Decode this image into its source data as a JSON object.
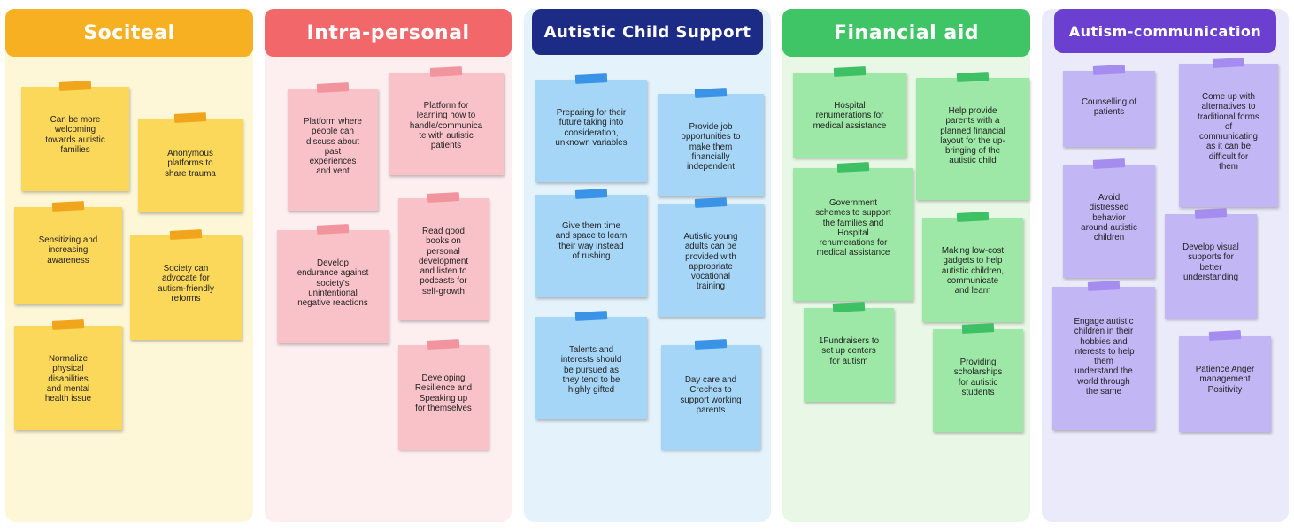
{
  "colors": {
    "societal": {
      "bg": "#fdf7d8",
      "header": "#f6b022",
      "note": "#fbd75a",
      "tape": "#f1a51c"
    },
    "intrapersonal": {
      "bg": "#fdeef0",
      "header": "#f2676a",
      "note": "#f9c2c9",
      "tape": "#f2949e"
    },
    "childsupport": {
      "bg": "#e3f2fb",
      "header": "#1b2b86",
      "note": "#a6d6f7",
      "tape": "#3a93e6"
    },
    "financial": {
      "bg": "#e9f8e6",
      "header": "#3fc466",
      "note": "#9de8a6",
      "tape": "#3ec064"
    },
    "communication": {
      "bg": "#ebeafb",
      "header": "#6b3fd0",
      "note": "#c2b6f5",
      "tape": "#a58df0"
    }
  },
  "columns": [
    {
      "title": "Sociteal",
      "notes": [
        "Can be more\nwelcoming\ntowards autistic\nfamilies",
        "Anonymous\nplatforms to\nshare trauma",
        "Sensitizing and\nincreasing\nawareness",
        "Society can\nadvocate for\nautism-friendly\nreforms",
        "Normalize\nphysical\ndisabilities\nand mental\nhealth issue"
      ]
    },
    {
      "title": "Intra-personal",
      "notes": [
        "Platform where\npeople can\ndiscuss about\npast\nexperiences\nand vent",
        "Platform for\nlearning how to\nhandle/communica\nte with autistic\npatients",
        "Develop\nendurance against\nsociety's\nunintentional\nnegative reactions",
        "Read good\nbooks on\npersonal\ndevelopment\nand listen to\npodcasts for\nself-growth",
        "Developing\nResilience and\nSpeaking up\nfor themselves"
      ]
    },
    {
      "title": "Autistic Child Support",
      "notes": [
        "Preparing for their\nfuture taking into\nconsideration,\nunknown variables",
        "Provide job\nopportunities to\nmake them\nfinancially\nindependent",
        "Give them time\nand space to learn\ntheir way instead\nof rushing",
        "Autistic young\nadults can be\nprovided with\nappropriate\nvocational\ntraining",
        "Talents and\ninterests should\nbe pursued as\nthey tend to be\nhighly gifted",
        "Day care and\nCreches to\nsupport working\nparents"
      ]
    },
    {
      "title": "Financial aid",
      "notes": [
        "Hospital\nrenumerations for\nmedical assistance",
        "Help provide\nparents with a\nplanned financial\nlayout for the up-\nbringing of the\nautistic child",
        "Government\nschemes to support\nthe families and\nHospital\nrenumerations for\nmedical assistance",
        "Making low-cost\ngadgets to help\nautistic children,\ncommunicate\nand learn",
        "1Fundraisers to\nset up centers\nfor autism",
        "Providing\nscholarships\nfor autistic\nstudents"
      ]
    },
    {
      "title": "Autism-communication",
      "notes": [
        "Counselling of\npatients",
        "Come up with\nalternatives to\ntraditional forms\nof\ncommunicating\nas it can be\ndifficult for\nthem",
        "Avoid\ndistressed\nbehavior\naround autistic\nchildren",
        "Develop visual\nsupports for\nbetter\nunderstanding",
        "Engage autistic\nchildren in their\nhobbies and\ninterests to help\nthem\nunderstand the\nworld through\nthe same",
        "Patience Anger\nmanagement\nPositivity"
      ]
    }
  ]
}
